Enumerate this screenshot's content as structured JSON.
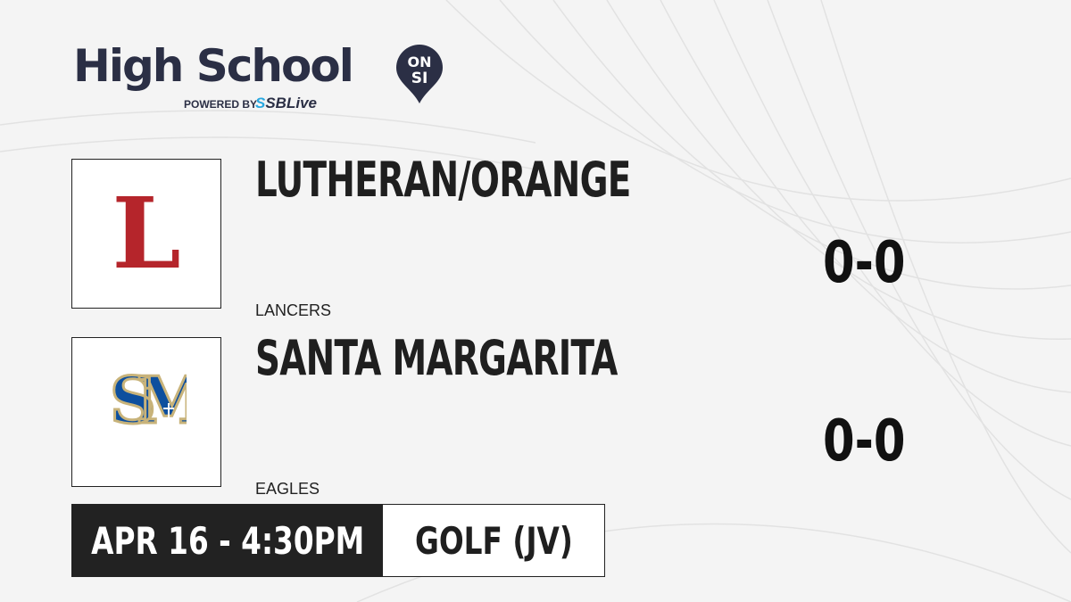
{
  "brand": {
    "title": "High School",
    "badge_top": "ON",
    "badge_bottom": "SI",
    "powered_by": "POWERED BY",
    "partner_prefix": "S",
    "partner": "SBLive",
    "accent": "#2b2f45",
    "partner_color": "#29a8e0"
  },
  "home": {
    "name": "LUTHERAN/ORANGE",
    "mascot": "LANCERS",
    "score": "0-0",
    "logo_letter": "L",
    "logo_color": "#b5252b"
  },
  "away": {
    "name": "SANTA MARGARITA",
    "mascot": "EAGLES",
    "score": "0-0",
    "logo_letters": "SM",
    "logo_color": "#0d4f9e",
    "logo_trim": "#c8b37a"
  },
  "event": {
    "datetime": "APR 16 - 4:30PM",
    "sport": "GOLF (JV)"
  }
}
